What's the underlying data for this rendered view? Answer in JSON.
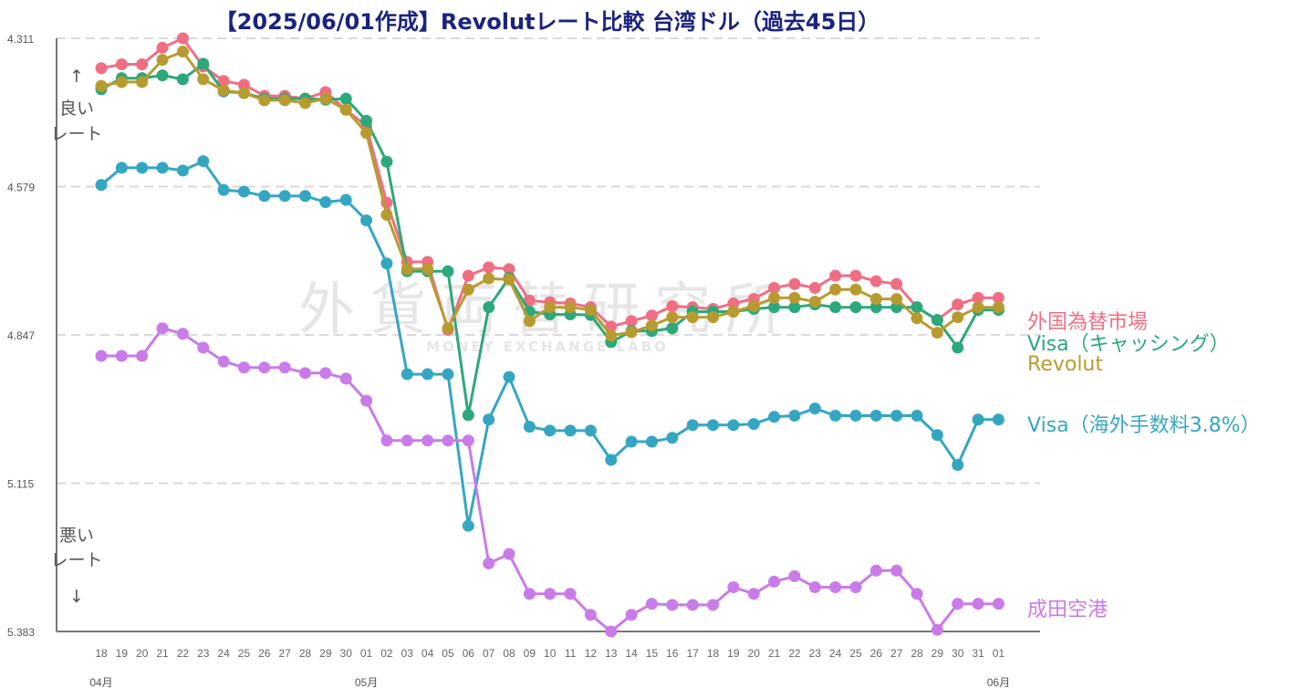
{
  "chart_data": {
    "type": "line",
    "title": "【2025/06/01作成】Revolutレート比較 台湾ドル（過去45日）",
    "watermark": {
      "text": "外貨両替研究所",
      "subtext": "MONEY EXCHANGE LABO"
    },
    "y_axis": {
      "inverted": true,
      "range": [
        4.311,
        5.383
      ],
      "ticks": [
        "4.311",
        "4.579",
        "4.847",
        "5.115",
        "5.383"
      ],
      "grid": "dashed"
    },
    "annotations": {
      "top": [
        "良い",
        "レート"
      ],
      "bottom": [
        "悪い",
        "レート"
      ],
      "arrow_up": "↑",
      "arrow_down": "↓"
    },
    "x_labels": [
      "18",
      "19",
      "20",
      "21",
      "22",
      "23",
      "24",
      "25",
      "26",
      "27",
      "28",
      "29",
      "30",
      "01",
      "02",
      "03",
      "04",
      "05",
      "06",
      "07",
      "08",
      "09",
      "10",
      "11",
      "12",
      "13",
      "14",
      "15",
      "16",
      "17",
      "18",
      "19",
      "20",
      "21",
      "22",
      "23",
      "24",
      "25",
      "26",
      "27",
      "28",
      "29",
      "30",
      "31",
      "01"
    ],
    "months": [
      {
        "label": "04月",
        "index": 0
      },
      {
        "label": "05月",
        "index": 13
      },
      {
        "label": "06月",
        "index": 44
      }
    ],
    "series": [
      {
        "name": "外国為替市場",
        "color": "#f06e84",
        "values": [
          4.365,
          4.358,
          4.358,
          4.328,
          4.311,
          4.362,
          4.388,
          4.395,
          4.415,
          4.415,
          4.42,
          4.408,
          4.44,
          4.47,
          4.608,
          4.715,
          4.715,
          4.838,
          4.74,
          4.725,
          4.728,
          4.785,
          4.788,
          4.79,
          4.797,
          4.832,
          4.822,
          4.812,
          4.795,
          4.797,
          4.8,
          4.79,
          4.782,
          4.762,
          4.755,
          4.762,
          4.74,
          4.74,
          4.75,
          4.755,
          4.797,
          4.82,
          4.792,
          4.78,
          4.78
        ]
      },
      {
        "name": "Visa（キャッシング）",
        "color": "#2ca87a",
        "values": [
          4.403,
          4.383,
          4.383,
          4.378,
          4.385,
          4.357,
          4.407,
          4.41,
          4.42,
          4.42,
          4.42,
          4.422,
          4.42,
          4.46,
          4.534,
          4.732,
          4.732,
          4.732,
          4.992,
          4.797,
          4.744,
          4.805,
          4.81,
          4.81,
          4.811,
          4.86,
          4.84,
          4.84,
          4.835,
          4.805,
          4.805,
          4.805,
          4.8,
          4.797,
          4.797,
          4.792,
          4.797,
          4.797,
          4.797,
          4.797,
          4.797,
          4.82,
          4.87,
          4.802,
          4.802
        ]
      },
      {
        "name": "Revolut",
        "color": "#b89b30",
        "values": [
          4.397,
          4.39,
          4.39,
          4.35,
          4.335,
          4.385,
          4.405,
          4.41,
          4.423,
          4.423,
          4.428,
          4.42,
          4.44,
          4.482,
          4.63,
          4.728,
          4.728,
          4.835,
          4.765,
          4.745,
          4.747,
          4.822,
          4.797,
          4.797,
          4.802,
          4.848,
          4.842,
          4.83,
          4.815,
          4.815,
          4.815,
          4.805,
          4.795,
          4.78,
          4.78,
          4.787,
          4.765,
          4.765,
          4.782,
          4.782,
          4.817,
          4.843,
          4.815,
          4.797,
          4.797
        ]
      },
      {
        "name": "Visa（海外手数料3.8%）",
        "color": "#35a6c2",
        "values": [
          4.576,
          4.545,
          4.545,
          4.545,
          4.55,
          4.533,
          4.585,
          4.588,
          4.596,
          4.596,
          4.596,
          4.607,
          4.603,
          4.64,
          4.718,
          4.918,
          4.918,
          4.918,
          5.192,
          5.0,
          4.923,
          5.013,
          5.02,
          5.02,
          5.02,
          5.073,
          5.04,
          5.04,
          5.033,
          5.01,
          5.01,
          5.01,
          5.008,
          4.995,
          4.993,
          4.98,
          4.993,
          4.993,
          4.993,
          4.993,
          4.993,
          5.028,
          5.082,
          5.0,
          5.0
        ]
      },
      {
        "name": "成田空港",
        "color": "#c97be8",
        "values": [
          4.885,
          4.885,
          4.885,
          4.835,
          4.845,
          4.87,
          4.895,
          4.906,
          4.906,
          4.906,
          4.916,
          4.916,
          4.926,
          4.966,
          5.038,
          5.038,
          5.038,
          5.038,
          5.038,
          5.26,
          5.243,
          5.315,
          5.315,
          5.315,
          5.353,
          5.383,
          5.353,
          5.333,
          5.335,
          5.335,
          5.335,
          5.303,
          5.315,
          5.293,
          5.283,
          5.303,
          5.303,
          5.303,
          5.273,
          5.273,
          5.315,
          5.38,
          5.333,
          5.333,
          5.333
        ]
      }
    ]
  }
}
